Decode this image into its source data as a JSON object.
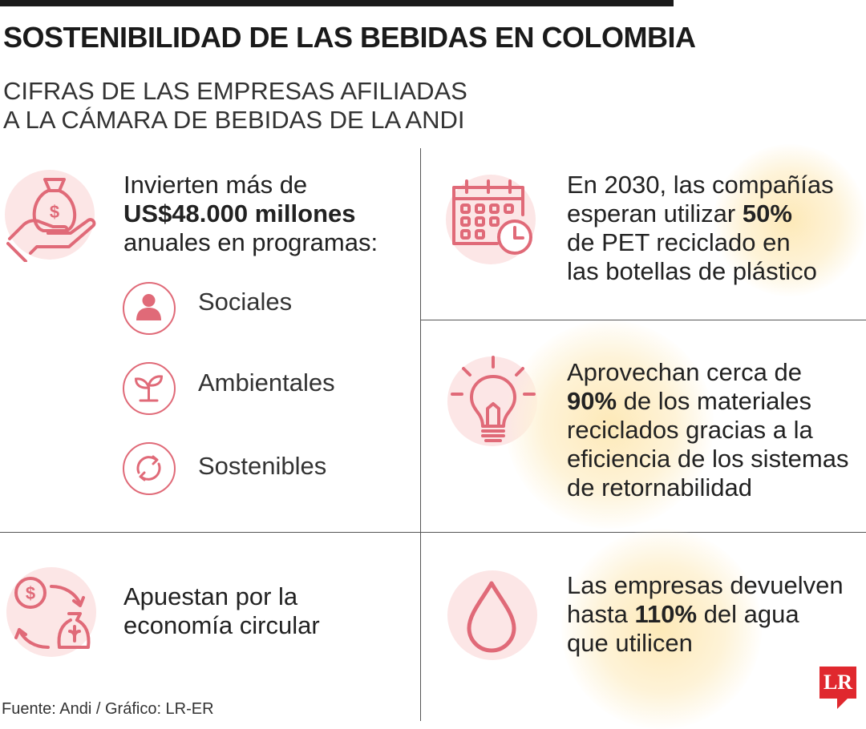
{
  "header": {
    "title": "SOSTENIBILIDAD DE LAS BEBIDAS EN COLOMBIA",
    "subtitle_line1": "CIFRAS DE LAS EMPRESAS AFILIADAS",
    "subtitle_line2": "A LA CÁMARA DE BEBIDAS DE LA ANDI"
  },
  "investment": {
    "line1": "Invierten más de",
    "amount": "US$48.000 millones",
    "line3": "anuales en programas:",
    "icon": "money-bag-hand-icon",
    "categories": [
      {
        "label": "Sociales",
        "icon": "person-icon"
      },
      {
        "label": "Ambientales",
        "icon": "sprout-icon"
      },
      {
        "label": "Sostenibles",
        "icon": "recycle-arrows-icon"
      }
    ]
  },
  "pet": {
    "line1": "En 2030, las compañías",
    "line2_pre": "esperan utilizar ",
    "line2_bold": "50%",
    "line3": "de PET reciclado en",
    "line4": "las botellas de plástico",
    "icon": "calendar-clock-icon"
  },
  "materials": {
    "line1": "Aprovechan cerca de",
    "line2_bold": "90%",
    "line2_post": " de los materiales",
    "line3": "reciclados gracias a la",
    "line4": "eficiencia de los sistemas",
    "line5": "de retornabilidad",
    "icon": "light-bulb-icon"
  },
  "circular": {
    "line1": "Apuestan por la",
    "line2": "economía circular",
    "icon": "circular-economy-icon"
  },
  "water": {
    "line1": "Las empresas devuelven",
    "line2_pre": "hasta ",
    "line2_bold": "110%",
    "line2_post": " del agua",
    "line3": "que utilicen",
    "icon": "water-drop-icon"
  },
  "footer": {
    "source": "Fuente: Andi / Gráfico: LR-ER",
    "logo": "LR"
  },
  "colors": {
    "accent": "#e06a78",
    "pink_bg": "#fce6e6",
    "yellow_bg": "#fde9b8",
    "logo_red": "#e0282e"
  }
}
